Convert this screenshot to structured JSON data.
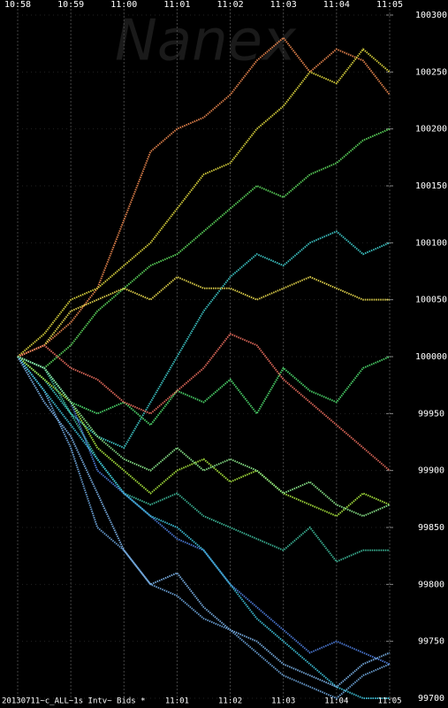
{
  "chart_data": {
    "type": "line",
    "watermark": "Nanex",
    "footer_text": "20130711~c_ALL~1s Intv~ Bids *",
    "x": [
      0,
      0.5,
      1,
      1.5,
      2,
      2.5,
      3,
      3.5,
      4,
      4.5,
      5,
      5.5,
      6,
      6.5,
      7
    ],
    "xlim": [
      0,
      7
    ],
    "xticks": [
      {
        "value": 0,
        "label": "10:58"
      },
      {
        "value": 1,
        "label": "10:59"
      },
      {
        "value": 2,
        "label": "11:00"
      },
      {
        "value": 3,
        "label": "11:01"
      },
      {
        "value": 4,
        "label": "11:02"
      },
      {
        "value": 5,
        "label": "11:03"
      },
      {
        "value": 6,
        "label": "11:04"
      },
      {
        "value": 7,
        "label": "11:05"
      }
    ],
    "ylim": [
      99700,
      100300
    ],
    "yticks": [
      99700,
      99750,
      99800,
      99850,
      99900,
      99950,
      100000,
      100050,
      100100,
      100150,
      100200,
      100250,
      100300
    ],
    "grid": true,
    "series": [
      {
        "color": "#f08a50",
        "values": [
          100000,
          100010,
          100030,
          100060,
          100120,
          100180,
          100200,
          100210,
          100230,
          100260,
          100280,
          100250,
          100270,
          100260,
          100230
        ]
      },
      {
        "color": "#e8e040",
        "values": [
          100000,
          100020,
          100050,
          100060,
          100080,
          100100,
          100130,
          100160,
          100170,
          100200,
          100220,
          100250,
          100240,
          100270,
          100250
        ]
      },
      {
        "color": "#60e060",
        "values": [
          100000,
          99990,
          100010,
          100040,
          100060,
          100080,
          100090,
          100110,
          100130,
          100150,
          100140,
          100160,
          100170,
          100190,
          100200
        ]
      },
      {
        "color": "#40d0d0",
        "values": [
          100000,
          99980,
          99950,
          99930,
          99920,
          99960,
          100000,
          100040,
          100070,
          100090,
          100080,
          100100,
          100110,
          100090,
          100100
        ]
      },
      {
        "color": "#f0e050",
        "values": [
          100000,
          100010,
          100040,
          100050,
          100060,
          100050,
          100070,
          100060,
          100060,
          100050,
          100060,
          100070,
          100060,
          100050,
          100050
        ]
      },
      {
        "color": "#50e070",
        "values": [
          100000,
          99990,
          99960,
          99950,
          99960,
          99940,
          99970,
          99960,
          99980,
          99950,
          99990,
          99970,
          99960,
          99990,
          100000
        ]
      },
      {
        "color": "#f07060",
        "values": [
          100000,
          100010,
          99990,
          99980,
          99960,
          99950,
          99970,
          99990,
          100020,
          100010,
          99980,
          99960,
          99940,
          99920,
          99900
        ]
      },
      {
        "color": "#b0f040",
        "values": [
          100000,
          99980,
          99960,
          99920,
          99900,
          99880,
          99900,
          99910,
          99890,
          99900,
          99880,
          99870,
          99860,
          99880,
          99870
        ]
      },
      {
        "color": "#40c0a0",
        "values": [
          100000,
          99990,
          99950,
          99910,
          99880,
          99870,
          99880,
          99860,
          99850,
          99840,
          99830,
          99850,
          99820,
          99830,
          99830
        ]
      },
      {
        "color": "#5080e0",
        "values": [
          100000,
          99990,
          99960,
          99900,
          99880,
          99860,
          99840,
          99830,
          99800,
          99780,
          99760,
          99740,
          99750,
          99740,
          99730
        ]
      },
      {
        "color": "#70a8e0",
        "values": [
          100000,
          99970,
          99920,
          99850,
          99830,
          99800,
          99790,
          99770,
          99760,
          99740,
          99720,
          99710,
          99700,
          99720,
          99730
        ]
      },
      {
        "color": "#40c8e0",
        "values": [
          100000,
          99970,
          99940,
          99910,
          99880,
          99860,
          99850,
          99830,
          99800,
          99770,
          99750,
          99730,
          99710,
          99700,
          99700
        ]
      },
      {
        "color": "#80b8f0",
        "values": [
          100000,
          99960,
          99930,
          99880,
          99830,
          99800,
          99810,
          99780,
          99760,
          99750,
          99730,
          99720,
          99710,
          99730,
          99740
        ]
      },
      {
        "color": "#90f090",
        "values": [
          100000,
          99990,
          99960,
          99930,
          99910,
          99900,
          99920,
          99900,
          99910,
          99900,
          99880,
          99890,
          99870,
          99860,
          99870
        ]
      }
    ]
  }
}
